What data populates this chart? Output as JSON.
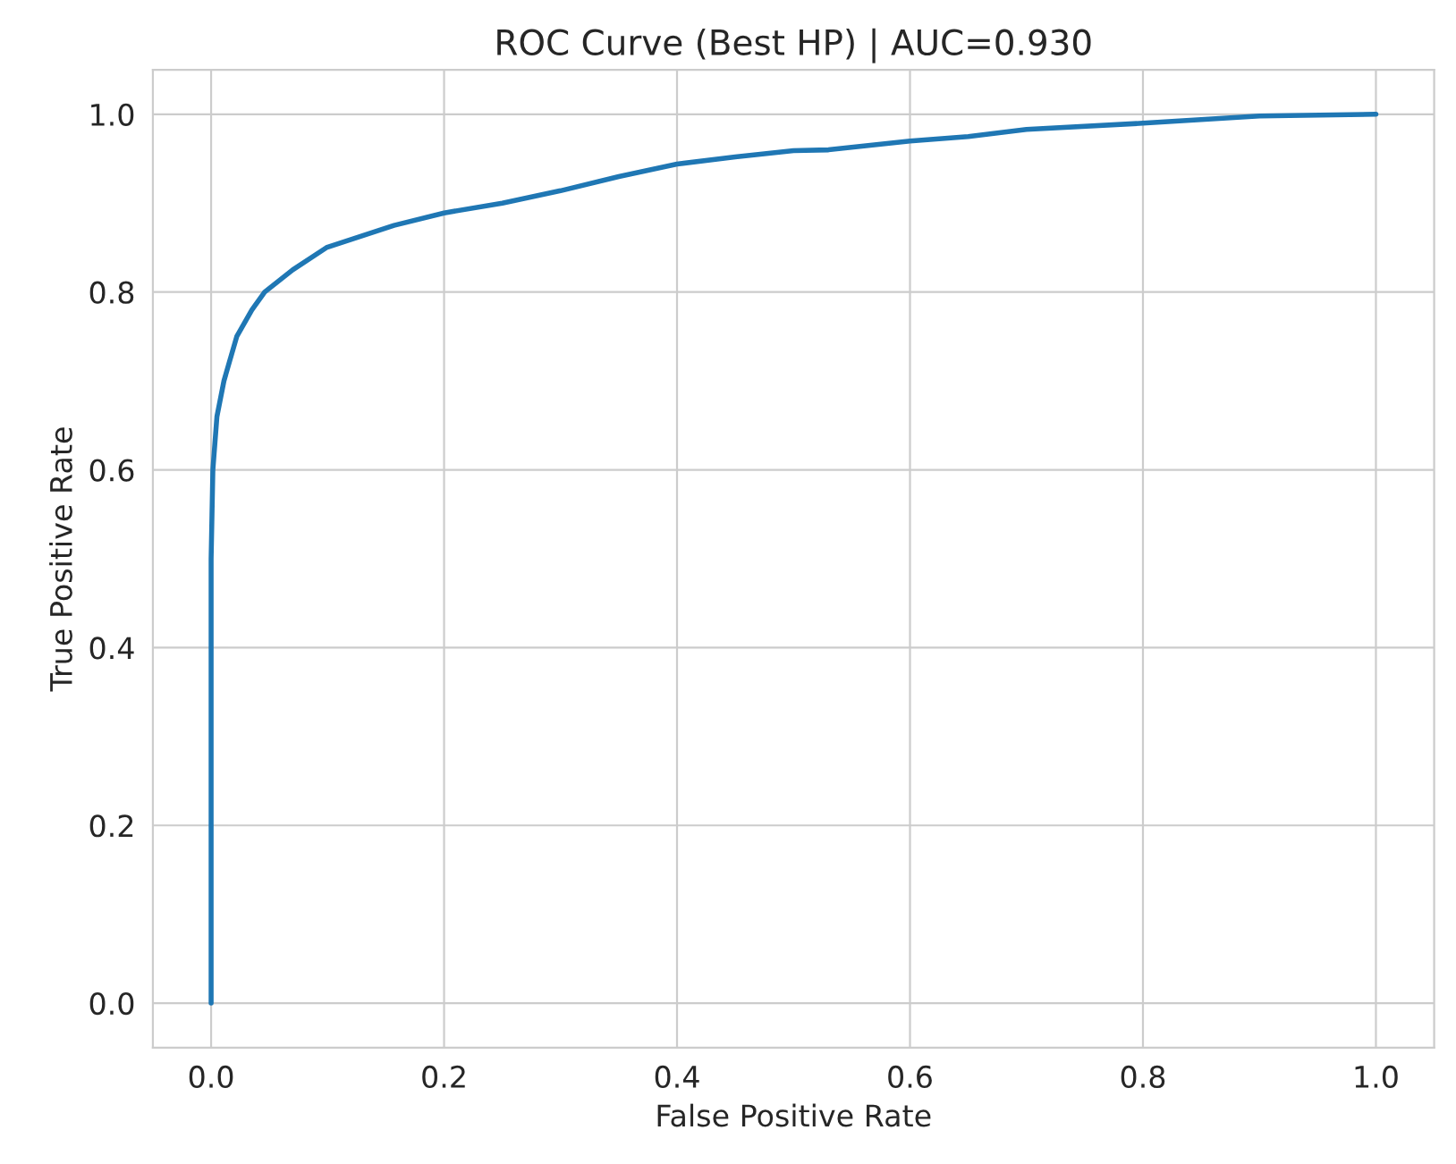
{
  "chart_data": {
    "type": "line",
    "title": "ROC Curve (Best HP) | AUC=0.930",
    "xlabel": "False Positive Rate",
    "ylabel": "True Positive Rate",
    "series": [
      {
        "color": "#1f77b4",
        "x": [
          0,
          0,
          0.0015,
          0.005,
          0.011,
          0.022,
          0.035,
          0.046,
          0.07,
          0.099,
          0.157,
          0.2,
          0.25,
          0.3,
          0.35,
          0.4,
          0.45,
          0.5,
          0.53,
          0.6,
          0.65,
          0.7,
          0.8,
          0.9,
          1.0
        ],
        "values": [
          0,
          0.5,
          0.6,
          0.66,
          0.7,
          0.75,
          0.78,
          0.8,
          0.825,
          0.85,
          0.875,
          0.889,
          0.9,
          0.914,
          0.93,
          0.944,
          0.952,
          0.959,
          0.96,
          0.97,
          0.975,
          0.983,
          0.99,
          0.998,
          1.0
        ]
      }
    ],
    "xlim": [
      -0.05,
      1.05
    ],
    "ylim": [
      -0.05,
      1.05
    ],
    "xticks": [
      {
        "value": 0,
        "label": "0.0"
      },
      0.2,
      0.4,
      0.6,
      0.8,
      {
        "value": 1,
        "label": "1.0"
      }
    ],
    "yticks": [
      {
        "value": 0,
        "label": "0.0"
      },
      0.2,
      0.4,
      0.6,
      0.8,
      {
        "value": 1,
        "label": "1.0"
      }
    ],
    "grid": true,
    "marker": "none",
    "line_style": "solid"
  }
}
